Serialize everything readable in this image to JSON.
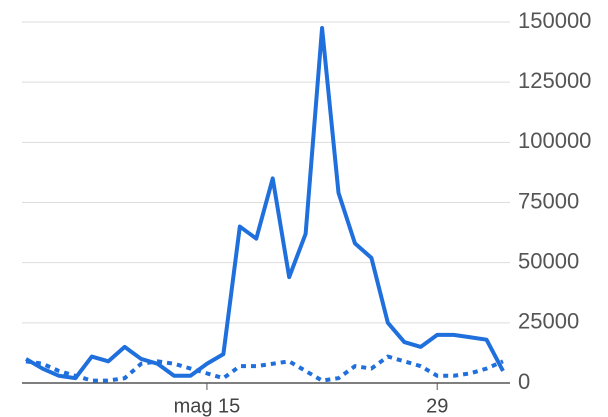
{
  "chart_data": {
    "type": "line",
    "categories": [
      null,
      null,
      null,
      null,
      null,
      null,
      null,
      null,
      null,
      null,
      null,
      "mag 15",
      null,
      null,
      null,
      null,
      null,
      null,
      null,
      null,
      null,
      null,
      null,
      null,
      null,
      "29",
      null,
      null,
      null,
      null
    ],
    "series": [
      {
        "color": "#1f6fdc",
        "style": "solid",
        "values": [
          10000,
          6000,
          3000,
          2000,
          11000,
          9000,
          15000,
          10000,
          8000,
          3000,
          3000,
          8000,
          12000,
          65000,
          60000,
          85000,
          44000,
          62000,
          147500,
          79000,
          58000,
          52000,
          25000,
          17000,
          15000,
          20000,
          20000,
          19000,
          18000,
          5000
        ]
      },
      {
        "color": "#1f6fdc",
        "style": "dotted",
        "values": [
          9000,
          8000,
          5000,
          3000,
          1000,
          1000,
          2000,
          8000,
          9000,
          8000,
          6000,
          4000,
          2000,
          7000,
          7000,
          8000,
          9000,
          5000,
          1000,
          2000,
          7000,
          6000,
          11000,
          9000,
          7000,
          3000,
          3000,
          4000,
          6000,
          9000
        ]
      }
    ],
    "ylim": [
      0,
      150000
    ],
    "yticks": [
      0,
      25000,
      50000,
      75000,
      100000,
      125000,
      150000
    ],
    "grid": true
  }
}
